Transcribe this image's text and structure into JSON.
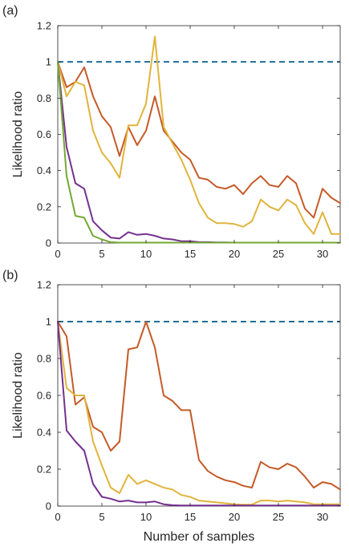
{
  "chart_data": [
    {
      "type": "line",
      "panel_label": "(a)",
      "xlabel": "",
      "ylabel": "Likelihood ratio",
      "xlim": [
        0,
        32
      ],
      "ylim": [
        0,
        1.2
      ],
      "xticks": [
        0,
        5,
        10,
        15,
        20,
        25,
        30
      ],
      "yticks": [
        0,
        0.2,
        0.4,
        0.6,
        0.8,
        1,
        1.2
      ],
      "ytick_labels": [
        "0",
        "0.2",
        "0.4",
        "0.6",
        "0.8",
        "1",
        "1.2"
      ],
      "grid": false,
      "reference_line": {
        "y": 1,
        "style": "dashed",
        "color": "#1f6e99"
      },
      "series": [
        {
          "color": "#c55a28",
          "x": [
            0,
            1,
            2,
            3,
            4,
            5,
            6,
            7,
            8,
            9,
            10,
            11,
            12,
            13,
            14,
            15,
            16,
            17,
            18,
            19,
            20,
            21,
            22,
            23,
            24,
            25,
            26,
            27,
            28,
            29,
            30,
            31,
            32
          ],
          "values": [
            1,
            0.86,
            0.89,
            0.97,
            0.81,
            0.7,
            0.64,
            0.48,
            0.64,
            0.54,
            0.62,
            0.81,
            0.62,
            0.56,
            0.5,
            0.46,
            0.36,
            0.35,
            0.31,
            0.3,
            0.32,
            0.27,
            0.33,
            0.37,
            0.32,
            0.31,
            0.37,
            0.33,
            0.19,
            0.14,
            0.3,
            0.25,
            0.22
          ]
        },
        {
          "color": "#e0b43c",
          "x": [
            0,
            1,
            2,
            3,
            4,
            5,
            6,
            7,
            8,
            9,
            10,
            11,
            12,
            13,
            14,
            15,
            16,
            17,
            18,
            19,
            20,
            21,
            22,
            23,
            24,
            25,
            26,
            27,
            28,
            29,
            30,
            31,
            32
          ],
          "values": [
            1,
            0.81,
            0.89,
            0.87,
            0.62,
            0.5,
            0.44,
            0.36,
            0.65,
            0.65,
            0.77,
            1.14,
            0.64,
            0.55,
            0.46,
            0.35,
            0.22,
            0.14,
            0.11,
            0.11,
            0.105,
            0.09,
            0.12,
            0.24,
            0.2,
            0.18,
            0.24,
            0.21,
            0.11,
            0.05,
            0.17,
            0.05,
            0.05
          ]
        },
        {
          "color": "#74308e",
          "x": [
            0,
            1,
            2,
            3,
            4,
            5,
            6,
            7,
            8,
            9,
            10,
            11,
            12,
            13,
            14,
            15,
            16,
            17,
            18,
            19,
            20,
            21,
            22,
            23,
            24,
            25,
            26,
            27,
            28,
            29,
            30,
            31,
            32
          ],
          "values": [
            1,
            0.53,
            0.33,
            0.3,
            0.12,
            0.07,
            0.03,
            0.025,
            0.06,
            0.045,
            0.05,
            0.04,
            0.025,
            0.02,
            0.01,
            0.01,
            0.005,
            0.005,
            0.003,
            0.003,
            0.002,
            0.002,
            0.002,
            0.002,
            0.002,
            0.002,
            0.002,
            0.002,
            0.002,
            0.002,
            0.002,
            0.002,
            0.002
          ]
        },
        {
          "color": "#74a834",
          "x": [
            0,
            1,
            2,
            3,
            4,
            5,
            6,
            7,
            8,
            9,
            10,
            11,
            12,
            13,
            14,
            15,
            16,
            17,
            18,
            19,
            20,
            21,
            22,
            23,
            24,
            25,
            26,
            27,
            28,
            29,
            30,
            31,
            32
          ],
          "values": [
            1,
            0.37,
            0.15,
            0.14,
            0.04,
            0.02,
            0.005,
            0.002,
            0.002,
            0.002,
            0.002,
            0.002,
            0.002,
            0.002,
            0.002,
            0.002,
            0.002,
            0.002,
            0.002,
            0.002,
            0.002,
            0.002,
            0.002,
            0.002,
            0.002,
            0.002,
            0.002,
            0.002,
            0.002,
            0.002,
            0.002,
            0.002,
            0.002
          ]
        }
      ]
    },
    {
      "type": "line",
      "panel_label": "(b)",
      "xlabel": "Number of samples",
      "ylabel": "Likelihood ratio",
      "xlim": [
        0,
        32
      ],
      "ylim": [
        0,
        1.2
      ],
      "xticks": [
        0,
        5,
        10,
        15,
        20,
        25,
        30
      ],
      "yticks": [
        0,
        0.2,
        0.4,
        0.6,
        0.8,
        1,
        1.2
      ],
      "ytick_labels": [
        "0",
        "0.2",
        "0.4",
        "0.6",
        "0.8",
        "1",
        "1.2"
      ],
      "grid": false,
      "reference_line": {
        "y": 1,
        "style": "dashed",
        "color": "#1f6e99"
      },
      "series": [
        {
          "color": "#c55a28",
          "x": [
            0,
            1,
            2,
            3,
            4,
            5,
            6,
            7,
            8,
            9,
            10,
            11,
            12,
            13,
            14,
            15,
            16,
            17,
            18,
            19,
            20,
            21,
            22,
            23,
            24,
            25,
            26,
            27,
            28,
            29,
            30,
            31,
            32
          ],
          "values": [
            1,
            0.92,
            0.55,
            0.59,
            0.43,
            0.4,
            0.3,
            0.35,
            0.85,
            0.86,
            1.0,
            0.86,
            0.6,
            0.57,
            0.52,
            0.52,
            0.25,
            0.19,
            0.16,
            0.14,
            0.13,
            0.11,
            0.1,
            0.24,
            0.21,
            0.2,
            0.23,
            0.21,
            0.16,
            0.1,
            0.13,
            0.12,
            0.09
          ]
        },
        {
          "color": "#e0b43c",
          "x": [
            0,
            1,
            2,
            3,
            4,
            5,
            6,
            7,
            8,
            9,
            10,
            11,
            12,
            13,
            14,
            15,
            16,
            17,
            18,
            19,
            20,
            21,
            22,
            23,
            24,
            25,
            26,
            27,
            28,
            29,
            30,
            31,
            32
          ],
          "values": [
            1,
            0.64,
            0.6,
            0.6,
            0.35,
            0.22,
            0.1,
            0.07,
            0.17,
            0.12,
            0.14,
            0.12,
            0.1,
            0.09,
            0.06,
            0.05,
            0.03,
            0.025,
            0.02,
            0.015,
            0.01,
            0.008,
            0.008,
            0.03,
            0.03,
            0.025,
            0.03,
            0.025,
            0.02,
            0.01,
            0.01,
            0.01,
            0.01
          ]
        },
        {
          "color": "#74308e",
          "x": [
            0,
            1,
            2,
            3,
            4,
            5,
            6,
            7,
            8,
            9,
            10,
            11,
            12,
            13,
            14,
            15,
            16,
            17,
            18,
            19,
            20,
            21,
            22,
            23,
            24,
            25,
            26,
            27,
            28,
            29,
            30,
            31,
            32
          ],
          "values": [
            1,
            0.41,
            0.35,
            0.3,
            0.12,
            0.05,
            0.04,
            0.025,
            0.03,
            0.02,
            0.02,
            0.025,
            0.01,
            0.005,
            0.003,
            0.003,
            0.003,
            0.003,
            0.003,
            0.003,
            0.003,
            0.003,
            0.003,
            0.003,
            0.003,
            0.003,
            0.003,
            0.003,
            0.003,
            0.003,
            0.003,
            0.003,
            0.003
          ]
        }
      ]
    }
  ]
}
